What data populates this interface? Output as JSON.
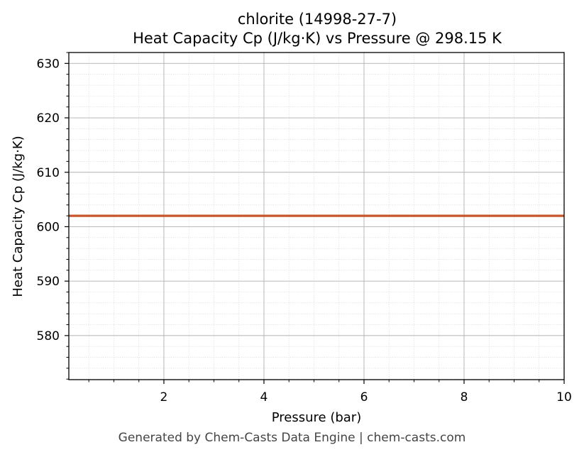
{
  "chart_data": {
    "type": "line",
    "title": "chlorite (14998-27-7)",
    "subtitle": "Heat Capacity Cp (J/kg·K) vs Pressure @ 298.15 K",
    "xlabel": "Pressure (bar)",
    "ylabel": "Heat Capacity Cp (J/kg·K)",
    "xlim": [
      0.1,
      10
    ],
    "ylim": [
      571.9,
      632.0
    ],
    "xticks": [
      2,
      4,
      6,
      8,
      10
    ],
    "xtick_labels": [
      "2",
      "4",
      "6",
      "8",
      "10"
    ],
    "yticks": [
      580,
      590,
      600,
      610,
      620,
      630
    ],
    "ytick_labels": [
      "580",
      "590",
      "600",
      "610",
      "620",
      "630"
    ],
    "grid": true,
    "series": [
      {
        "x": [
          0.1,
          10
        ],
        "y": [
          602.0,
          602.0
        ],
        "color": "#c8552a"
      }
    ]
  },
  "footer": "Generated by Chem-Casts Data Engine | chem-casts.com"
}
